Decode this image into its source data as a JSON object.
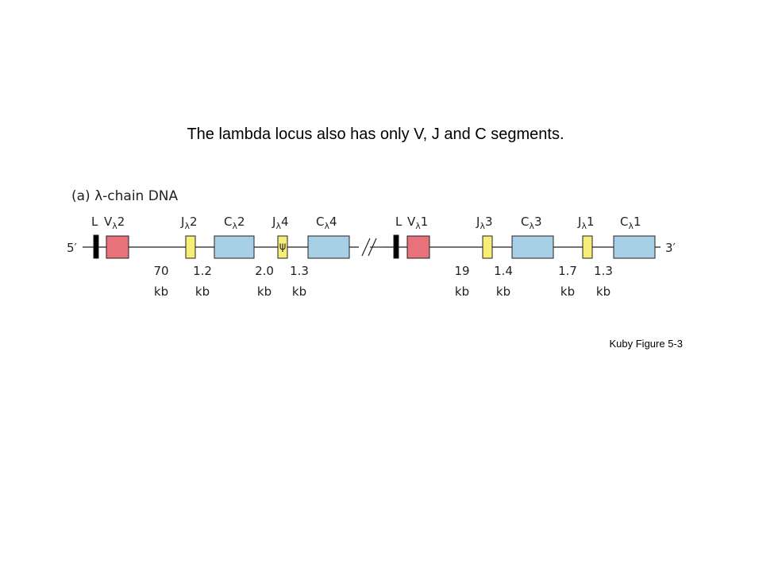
{
  "slide": {
    "title": "The lambda locus also has only V, J and C segments.",
    "figure_label": "(a) λ-chain DNA",
    "five_prime": "5′",
    "three_prime": "3′",
    "pseudogene_symbol": "ψ",
    "labels": [
      {
        "base": "L"
      },
      {
        "base": "V",
        "sub": "λ",
        "num": "2"
      },
      {
        "base": "J",
        "sub": "λ",
        "num": "2"
      },
      {
        "base": "C",
        "sub": "λ",
        "num": "2"
      },
      {
        "base": "J",
        "sub": "λ",
        "num": "4"
      },
      {
        "base": "C",
        "sub": "λ",
        "num": "4"
      },
      {
        "base": "L"
      },
      {
        "base": "V",
        "sub": "λ",
        "num": "1"
      },
      {
        "base": "J",
        "sub": "λ",
        "num": "3"
      },
      {
        "base": "C",
        "sub": "λ",
        "num": "3"
      },
      {
        "base": "J",
        "sub": "λ",
        "num": "1"
      },
      {
        "base": "C",
        "sub": "λ",
        "num": "1"
      }
    ],
    "distances": [
      {
        "number": "70",
        "unit": "kb"
      },
      {
        "number": "1.2",
        "unit": "kb"
      },
      {
        "number": "2.0",
        "unit": "kb"
      },
      {
        "number": "1.3",
        "unit": "kb"
      },
      {
        "number": "19",
        "unit": "kb"
      },
      {
        "number": "1.4",
        "unit": "kb"
      },
      {
        "number": "1.7",
        "unit": "kb"
      },
      {
        "number": "1.3",
        "unit": "kb"
      }
    ],
    "caption": "Kuby Figure 5-3"
  }
}
